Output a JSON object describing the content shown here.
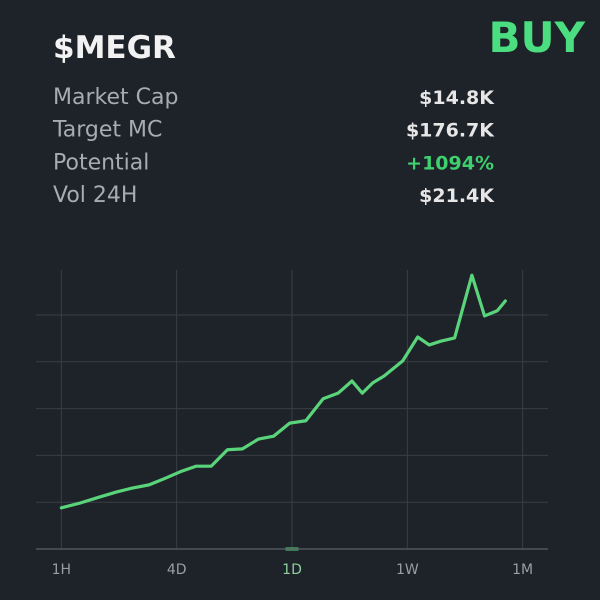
{
  "header": {
    "title": "$MEGR",
    "signal": "BUY"
  },
  "stats": [
    {
      "label": "Market Cap",
      "value": "$14.8K",
      "color": "#e6e6e6"
    },
    {
      "label": "Target MC",
      "value": "$176.7K",
      "color": "#e6e6e6"
    },
    {
      "label": "Potential",
      "value": "+1094%",
      "color": "#3ecf6e"
    },
    {
      "label": "Vol 24H",
      "value": "$21.4K",
      "color": "#e6e6e6"
    }
  ],
  "chart_data": {
    "type": "line",
    "color": "#5ad47a",
    "grid": true,
    "active_range": "1D",
    "xlim": [
      -0.22,
      4.22
    ],
    "xticks": [
      {
        "value": 0,
        "label": "1H"
      },
      {
        "value": 1,
        "label": "4D"
      },
      {
        "value": 2,
        "label": "1D"
      },
      {
        "value": 3,
        "label": "1W"
      },
      {
        "value": 4,
        "label": "1M"
      }
    ],
    "ylim": [
      0,
      6
    ],
    "yticks": [
      1,
      2,
      3,
      4,
      5
    ],
    "x": [
      0,
      0.16,
      0.33,
      0.48,
      0.61,
      0.76,
      0.89,
      1.03,
      1.17,
      1.3,
      1.44,
      1.57,
      1.71,
      1.84,
      1.98,
      2.12,
      2.27,
      2.4,
      2.52,
      2.61,
      2.7,
      2.8,
      2.96,
      3.09,
      3.19,
      3.29,
      3.41,
      3.56,
      3.67,
      3.78,
      3.85
    ],
    "values": [
      0.88,
      0.98,
      1.11,
      1.22,
      1.3,
      1.37,
      1.5,
      1.65,
      1.77,
      1.77,
      2.12,
      2.14,
      2.35,
      2.41,
      2.69,
      2.74,
      3.21,
      3.33,
      3.59,
      3.33,
      3.55,
      3.7,
      4.02,
      4.53,
      4.36,
      4.44,
      4.51,
      5.85,
      4.98,
      5.09,
      5.3
    ]
  }
}
